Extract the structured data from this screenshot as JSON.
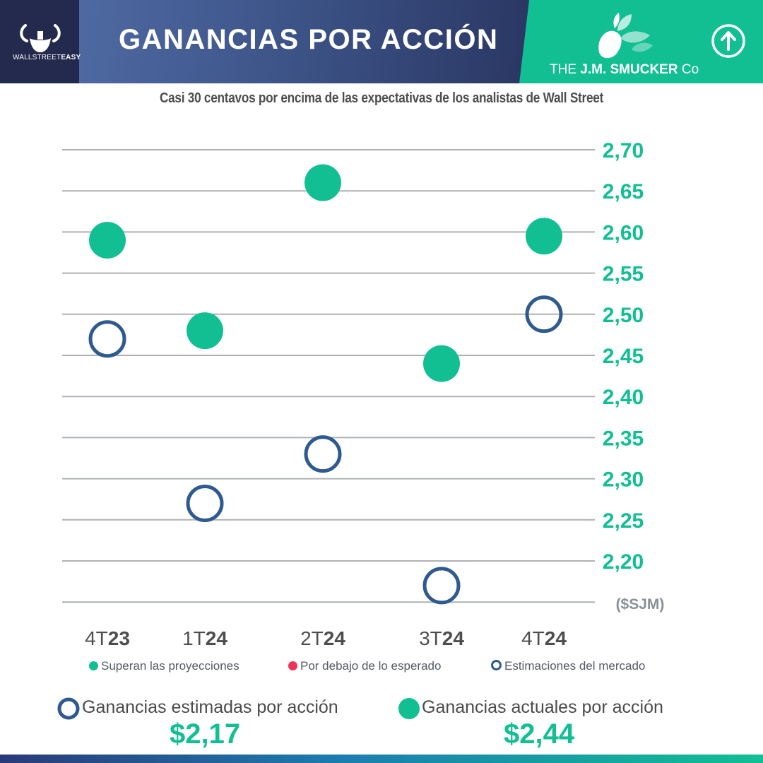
{
  "header": {
    "brand": "WALLSTREETEASY",
    "brand_left": "WALLSTREET",
    "brand_right": "EASY",
    "title": "GANANCIAS POR ACCIÓN",
    "company_prefix": "THE",
    "company_name": "J.M. SMUCKER",
    "company_suffix": "Co",
    "brand_color": "#12bf93",
    "navy": "#232a4d"
  },
  "subtitle": "Casi 30 centavos por encima de las expectativas de los analistas de Wall Street",
  "chart_data": {
    "type": "scatter",
    "title": "GANANCIAS POR ACCIÓN",
    "subtitle": "Casi 30 centavos por encima de las expectativas de los analistas de Wall Street",
    "categories": [
      "4T23",
      "1T24",
      "2T24",
      "3T24",
      "4T24"
    ],
    "category_parts": [
      [
        "4T",
        "23"
      ],
      [
        "1T",
        "24"
      ],
      [
        "2T",
        "24"
      ],
      [
        "3T",
        "24"
      ],
      [
        "4T",
        "24"
      ]
    ],
    "y_ticks": [
      "2,70",
      "2,65",
      "2,60",
      "2,55",
      "2,50",
      "2,45",
      "2,40",
      "2,35",
      "2,30",
      "2,25",
      "2,20"
    ],
    "ylim": [
      2.15,
      2.7
    ],
    "y_unit_label": "($SJM)",
    "y_axis_side": "right",
    "grid": true,
    "series": [
      {
        "name": "Superan las proyecciones",
        "style": "filled",
        "color": "#12bf93",
        "values": [
          2.59,
          2.48,
          2.66,
          2.44,
          2.595
        ]
      },
      {
        "name": "Estimaciones del mercado",
        "style": "hollow",
        "color": "#2f5a8f",
        "values": [
          2.47,
          2.27,
          2.33,
          2.17,
          2.5
        ]
      }
    ],
    "legend": [
      {
        "label": "Superan las proyecciones",
        "style": "filled",
        "color": "#12bf93"
      },
      {
        "label": "Por debajo de lo esperado",
        "style": "filled",
        "color": "#f0335a"
      },
      {
        "label": "Estimaciones del mercado",
        "style": "hollow",
        "color": "#2f5a8f"
      }
    ],
    "legend_position": "bottom"
  },
  "summary": {
    "estimated_label": "Ganancias estimadas por acción",
    "estimated_value": "$2,17",
    "actual_label": "Ganancias actuales por acción",
    "actual_value": "$2,44"
  }
}
